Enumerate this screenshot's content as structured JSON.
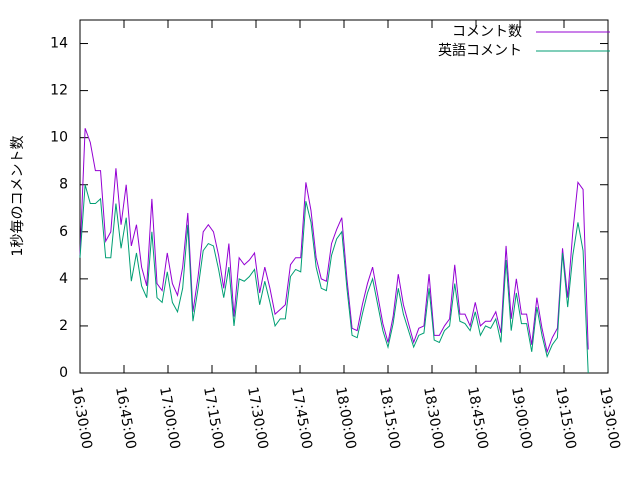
{
  "chart_data": {
    "type": "line",
    "ylabel": "1秒毎のコメント数",
    "x": [
      "16:30:00",
      "16:31:45",
      "16:33:30",
      "16:35:15",
      "16:37:00",
      "16:38:45",
      "16:40:30",
      "16:42:15",
      "16:44:00",
      "16:45:45",
      "16:47:30",
      "16:49:15",
      "16:51:00",
      "16:52:45",
      "16:54:30",
      "16:56:15",
      "16:58:00",
      "16:59:45",
      "17:01:30",
      "17:03:15",
      "17:05:00",
      "17:06:45",
      "17:08:30",
      "17:10:15",
      "17:12:00",
      "17:13:45",
      "17:15:30",
      "17:17:15",
      "17:19:00",
      "17:20:45",
      "17:22:30",
      "17:24:15",
      "17:26:00",
      "17:27:45",
      "17:29:30",
      "17:31:15",
      "17:33:00",
      "17:34:45",
      "17:36:30",
      "17:38:15",
      "17:40:00",
      "17:41:45",
      "17:43:30",
      "17:45:15",
      "17:47:00",
      "17:48:45",
      "17:50:30",
      "17:52:15",
      "17:54:00",
      "17:55:45",
      "17:57:30",
      "17:59:15",
      "18:01:00",
      "18:02:45",
      "18:04:30",
      "18:06:15",
      "18:08:00",
      "18:09:45",
      "18:11:30",
      "18:13:15",
      "18:15:00",
      "18:16:45",
      "18:18:30",
      "18:20:15",
      "18:22:00",
      "18:23:45",
      "18:25:30",
      "18:27:15",
      "18:29:00",
      "18:30:45",
      "18:32:30",
      "18:34:15",
      "18:36:00",
      "18:37:45",
      "18:39:30",
      "18:41:15",
      "18:43:00",
      "18:44:45",
      "18:46:30",
      "18:48:15",
      "18:50:00",
      "18:51:45",
      "18:53:30",
      "18:55:15",
      "18:57:00",
      "18:58:45",
      "19:00:30",
      "19:02:15",
      "19:04:00",
      "19:05:45",
      "19:07:30",
      "19:09:15",
      "19:11:00",
      "19:12:45",
      "19:14:30",
      "19:16:15",
      "19:18:00",
      "19:19:45",
      "19:21:30",
      "19:23:15"
    ],
    "series": [
      {
        "name": "コメント数",
        "color": "#9400d3",
        "values": [
          5.0,
          10.4,
          9.8,
          8.6,
          8.6,
          5.6,
          6.0,
          8.7,
          6.3,
          8.0,
          5.4,
          6.3,
          4.5,
          3.7,
          7.4,
          3.8,
          3.5,
          5.1,
          3.8,
          3.3,
          4.5,
          6.8,
          2.6,
          4.1,
          6.0,
          6.3,
          6.0,
          5.0,
          3.6,
          5.5,
          2.4,
          4.9,
          4.6,
          4.8,
          5.1,
          3.4,
          4.5,
          3.6,
          2.5,
          2.7,
          2.9,
          4.6,
          4.9,
          4.9,
          8.1,
          6.9,
          4.9,
          4.0,
          3.9,
          5.5,
          6.1,
          6.6,
          4.0,
          1.9,
          1.8,
          2.9,
          3.8,
          4.5,
          3.3,
          2.1,
          1.3,
          2.4,
          4.2,
          2.9,
          2.1,
          1.3,
          1.9,
          2.0,
          4.2,
          1.6,
          1.6,
          2.0,
          2.3,
          4.6,
          2.5,
          2.5,
          2.0,
          3.0,
          2.0,
          2.2,
          2.2,
          2.6,
          1.7,
          5.4,
          2.3,
          4.0,
          2.5,
          2.5,
          1.2,
          3.2,
          1.9,
          0.9,
          1.5,
          1.9,
          5.3,
          3.2,
          6.0,
          8.1,
          7.8,
          1.0
        ]
      },
      {
        "name": "英語コメント",
        "color": "#009e73",
        "values": [
          4.9,
          8.0,
          7.2,
          7.2,
          7.4,
          4.9,
          4.9,
          7.2,
          5.3,
          6.6,
          3.9,
          5.1,
          3.7,
          3.2,
          6.0,
          3.2,
          3.0,
          4.3,
          3.0,
          2.6,
          3.6,
          6.3,
          2.2,
          3.6,
          5.2,
          5.5,
          5.4,
          4.4,
          3.2,
          4.5,
          2.0,
          4.0,
          3.9,
          4.1,
          4.4,
          2.9,
          3.9,
          3.0,
          2.0,
          2.3,
          2.3,
          4.1,
          4.4,
          4.3,
          7.3,
          6.4,
          4.5,
          3.6,
          3.5,
          5.0,
          5.7,
          6.0,
          3.6,
          1.6,
          1.5,
          2.5,
          3.4,
          4.0,
          2.9,
          1.8,
          1.1,
          2.1,
          3.6,
          2.5,
          1.8,
          1.1,
          1.6,
          1.7,
          3.6,
          1.4,
          1.3,
          1.8,
          2.0,
          3.8,
          2.2,
          2.1,
          1.8,
          2.6,
          1.6,
          2.0,
          1.9,
          2.3,
          1.3,
          4.8,
          1.8,
          3.4,
          2.1,
          2.1,
          0.9,
          2.8,
          1.6,
          0.7,
          1.2,
          1.5,
          5.1,
          2.8,
          5.0,
          6.4,
          5.2,
          0.0
        ]
      }
    ],
    "xlim": [
      "16:30:00",
      "19:30:00"
    ],
    "xticks": [
      "16:30:00",
      "16:45:00",
      "17:00:00",
      "17:15:00",
      "17:30:00",
      "17:45:00",
      "18:00:00",
      "18:15:00",
      "18:30:00",
      "18:45:00",
      "19:00:00",
      "19:15:00",
      "19:30:00"
    ],
    "ylim": [
      0,
      15
    ],
    "yticks": [
      0,
      2,
      4,
      6,
      8,
      10,
      12,
      14
    ],
    "legend": "top-right"
  }
}
